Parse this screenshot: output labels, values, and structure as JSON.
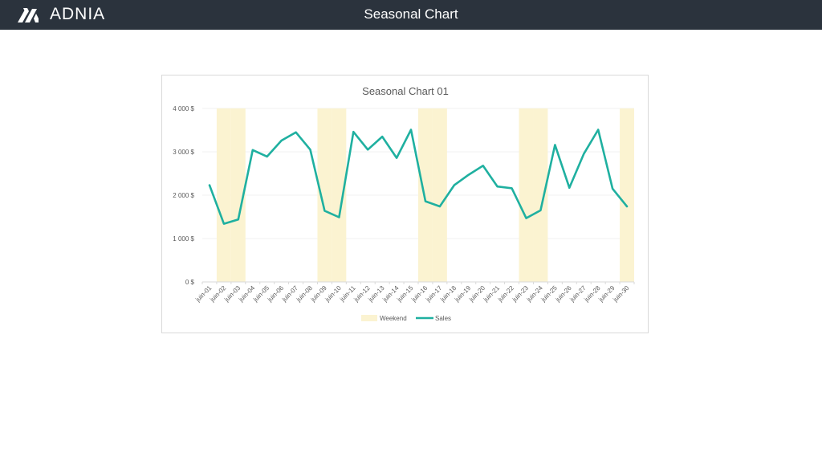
{
  "app": {
    "logo_text": "ADNIA",
    "page_title": "Seasonal Chart"
  },
  "colors": {
    "header_bg": "#2b333d",
    "weekend_band": "#fbf3d1",
    "sales_line": "#1fb0a0"
  },
  "chart_data": {
    "type": "line",
    "title": "Seasonal Chart 01",
    "xlabel": "",
    "ylabel": "",
    "ylim": [
      0,
      4000
    ],
    "y_ticks": [
      "0 $",
      "1 000 $",
      "2 000 $",
      "3 000 $",
      "4 000 $"
    ],
    "grid": true,
    "legend_position": "bottom",
    "categories": [
      "juin-01",
      "juin-02",
      "juin-03",
      "juin-04",
      "juin-05",
      "juin-06",
      "juin-07",
      "juin-08",
      "juin-09",
      "juin-10",
      "juin-11",
      "juin-12",
      "juin-13",
      "juin-14",
      "juin-15",
      "juin-16",
      "juin-17",
      "juin-18",
      "juin-19",
      "juin-20",
      "juin-21",
      "juin-22",
      "juin-23",
      "juin-24",
      "juin-25",
      "juin-26",
      "juin-27",
      "juin-28",
      "juin-29",
      "juin-30"
    ],
    "series": [
      {
        "name": "Weekend",
        "type": "bar",
        "values": [
          0,
          4000,
          4000,
          0,
          0,
          0,
          0,
          0,
          4000,
          4000,
          0,
          0,
          0,
          0,
          0,
          4000,
          4000,
          0,
          0,
          0,
          0,
          0,
          4000,
          4000,
          0,
          0,
          0,
          0,
          0,
          4000
        ]
      },
      {
        "name": "Sales",
        "type": "line",
        "values": [
          2230,
          1340,
          1440,
          3040,
          2890,
          3260,
          3450,
          3050,
          1640,
          1490,
          3460,
          3050,
          3350,
          2860,
          3510,
          1860,
          1740,
          2230,
          2470,
          2680,
          2200,
          2160,
          1470,
          1650,
          3160,
          2170,
          2950,
          3510,
          2150,
          1740
        ]
      }
    ]
  }
}
